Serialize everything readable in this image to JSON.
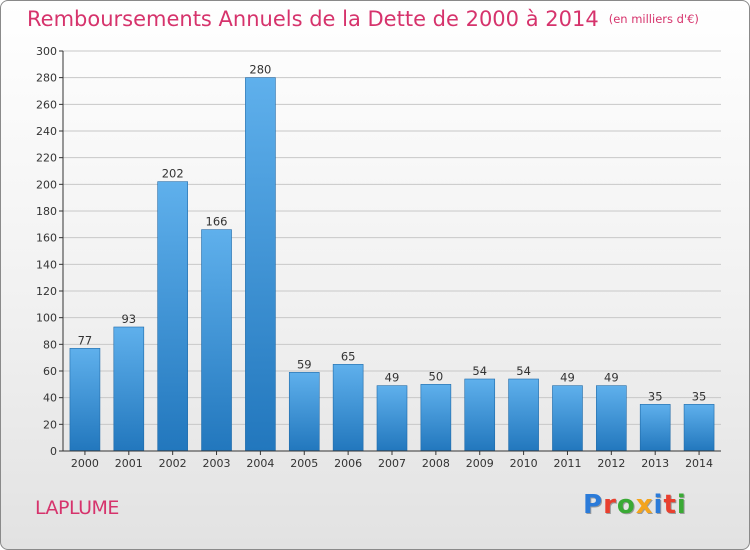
{
  "title": "Remboursements Annuels de la Dette de 2000 à 2014",
  "unit": "(en milliers d'€)",
  "commune": "LAPLUME",
  "logo": {
    "text": "Proxiti",
    "letters": [
      {
        "ch": "P",
        "color": "#2b7bd9"
      },
      {
        "ch": "r",
        "color": "#e8402f"
      },
      {
        "ch": "o",
        "color": "#3aaa35"
      },
      {
        "ch": "x",
        "color": "#f4a41d"
      },
      {
        "ch": "i",
        "color": "#2b7bd9"
      },
      {
        "ch": "t",
        "color": "#e8402f"
      },
      {
        "ch": "i",
        "color": "#3aaa35"
      }
    ]
  },
  "colors": {
    "title": "#d6336c",
    "bar_top": "#5fb0ec",
    "bar_bottom": "#2277bd",
    "grid": "#c8c8c8",
    "axis": "#333333"
  },
  "chart_data": {
    "type": "bar",
    "categories": [
      "2000",
      "2001",
      "2002",
      "2003",
      "2004",
      "2005",
      "2006",
      "2007",
      "2008",
      "2009",
      "2010",
      "2011",
      "2012",
      "2013",
      "2014"
    ],
    "values": [
      77,
      93,
      202,
      166,
      280,
      59,
      65,
      49,
      50,
      54,
      54,
      49,
      49,
      35,
      35
    ],
    "ylim": [
      0,
      300
    ],
    "yticks": [
      0,
      20,
      40,
      60,
      80,
      100,
      120,
      140,
      160,
      180,
      200,
      220,
      240,
      260,
      280,
      300
    ],
    "grid": true,
    "data_labels": true
  }
}
